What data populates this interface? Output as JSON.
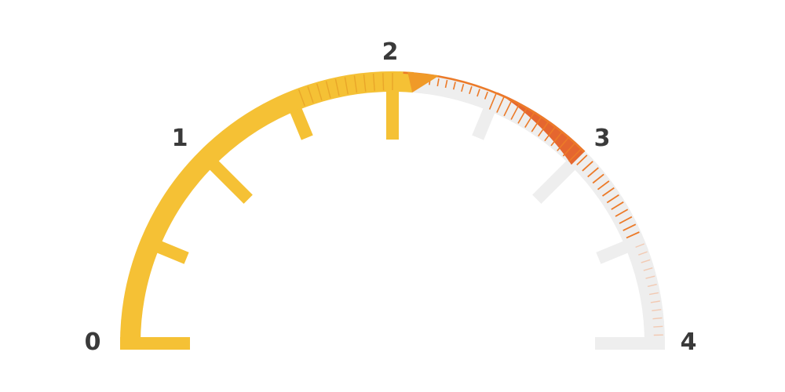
{
  "gauge": {
    "min": 0,
    "max": 4,
    "value": 2.1,
    "scale_labels": [
      "0",
      "1",
      "2",
      "3",
      "4"
    ],
    "colors": {
      "track": "#eeeeee",
      "fill": "#f5c135",
      "fill_tick": "#e9a629",
      "tip": "#f09a28",
      "zone_outline": "#ec7a28",
      "zone_wedge": "#e45a1e",
      "zone_tick": "#ec7a28",
      "faint_tick": "#f2c9b2"
    }
  }
}
